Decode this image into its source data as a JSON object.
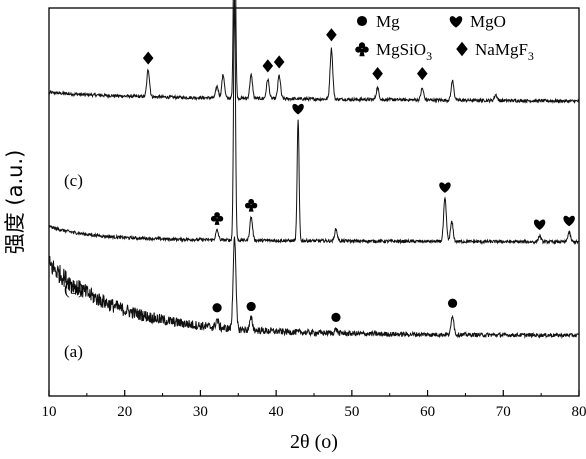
{
  "chart_data": {
    "type": "line",
    "xlabel": "2θ (o)",
    "ylabel": "强度 (a.u.)",
    "xlim": [
      10,
      80
    ],
    "x_ticks": [
      "10",
      "20",
      "30",
      "40",
      "50",
      "60",
      "70",
      "80"
    ],
    "legend": {
      "placement": "top-right",
      "entries": [
        {
          "symbol": "circle",
          "label_main": "Mg",
          "label_sub": ""
        },
        {
          "symbol": "heart",
          "label_main": "MgO",
          "label_sub": ""
        },
        {
          "symbol": "club",
          "label_main": "MgSiO",
          "label_sub": "3"
        },
        {
          "symbol": "diamond",
          "label_main": "NaMgF",
          "label_sub": "3"
        }
      ]
    },
    "series": [
      {
        "name": "(c)",
        "baseline": 0.77,
        "peaks": [
          {
            "x": 23.1,
            "h": 0.07,
            "marker": "diamond"
          },
          {
            "x": 32.2,
            "h": 0.03
          },
          {
            "x": 33.0,
            "h": 0.06
          },
          {
            "x": 34.5,
            "h": 0.66,
            "marker": "circle"
          },
          {
            "x": 36.7,
            "h": 0.06
          },
          {
            "x": 38.9,
            "h": 0.05,
            "marker": "diamond"
          },
          {
            "x": 40.4,
            "h": 0.06,
            "marker": "diamond"
          },
          {
            "x": 47.3,
            "h": 0.13,
            "marker": "diamond"
          },
          {
            "x": 53.4,
            "h": 0.03,
            "marker": "diamond"
          },
          {
            "x": 59.3,
            "h": 0.03,
            "marker": "diamond"
          },
          {
            "x": 63.3,
            "h": 0.05
          },
          {
            "x": 69.0,
            "h": 0.015
          }
        ]
      },
      {
        "name": "(b)",
        "baseline": 0.395,
        "peaks": [
          {
            "x": 32.2,
            "h": 0.025,
            "marker": "club"
          },
          {
            "x": 34.5,
            "h": 0.64
          },
          {
            "x": 36.7,
            "h": 0.06,
            "marker": "club"
          },
          {
            "x": 42.9,
            "h": 0.31,
            "marker": "heart"
          },
          {
            "x": 47.9,
            "h": 0.03
          },
          {
            "x": 62.3,
            "h": 0.11,
            "marker": "heart"
          },
          {
            "x": 63.2,
            "h": 0.05
          },
          {
            "x": 74.8,
            "h": 0.015,
            "marker": "heart"
          },
          {
            "x": 78.7,
            "h": 0.025,
            "marker": "heart"
          }
        ]
      },
      {
        "name": "(a)",
        "baseline": 0.155,
        "peaks": [
          {
            "x": 32.2,
            "h": 0.02,
            "marker": "circle"
          },
          {
            "x": 34.5,
            "h": 0.24
          },
          {
            "x": 36.7,
            "h": 0.03,
            "marker": "circle"
          },
          {
            "x": 47.9,
            "h": 0.01,
            "marker": "circle"
          },
          {
            "x": 63.3,
            "h": 0.05,
            "marker": "circle"
          }
        ]
      }
    ]
  }
}
